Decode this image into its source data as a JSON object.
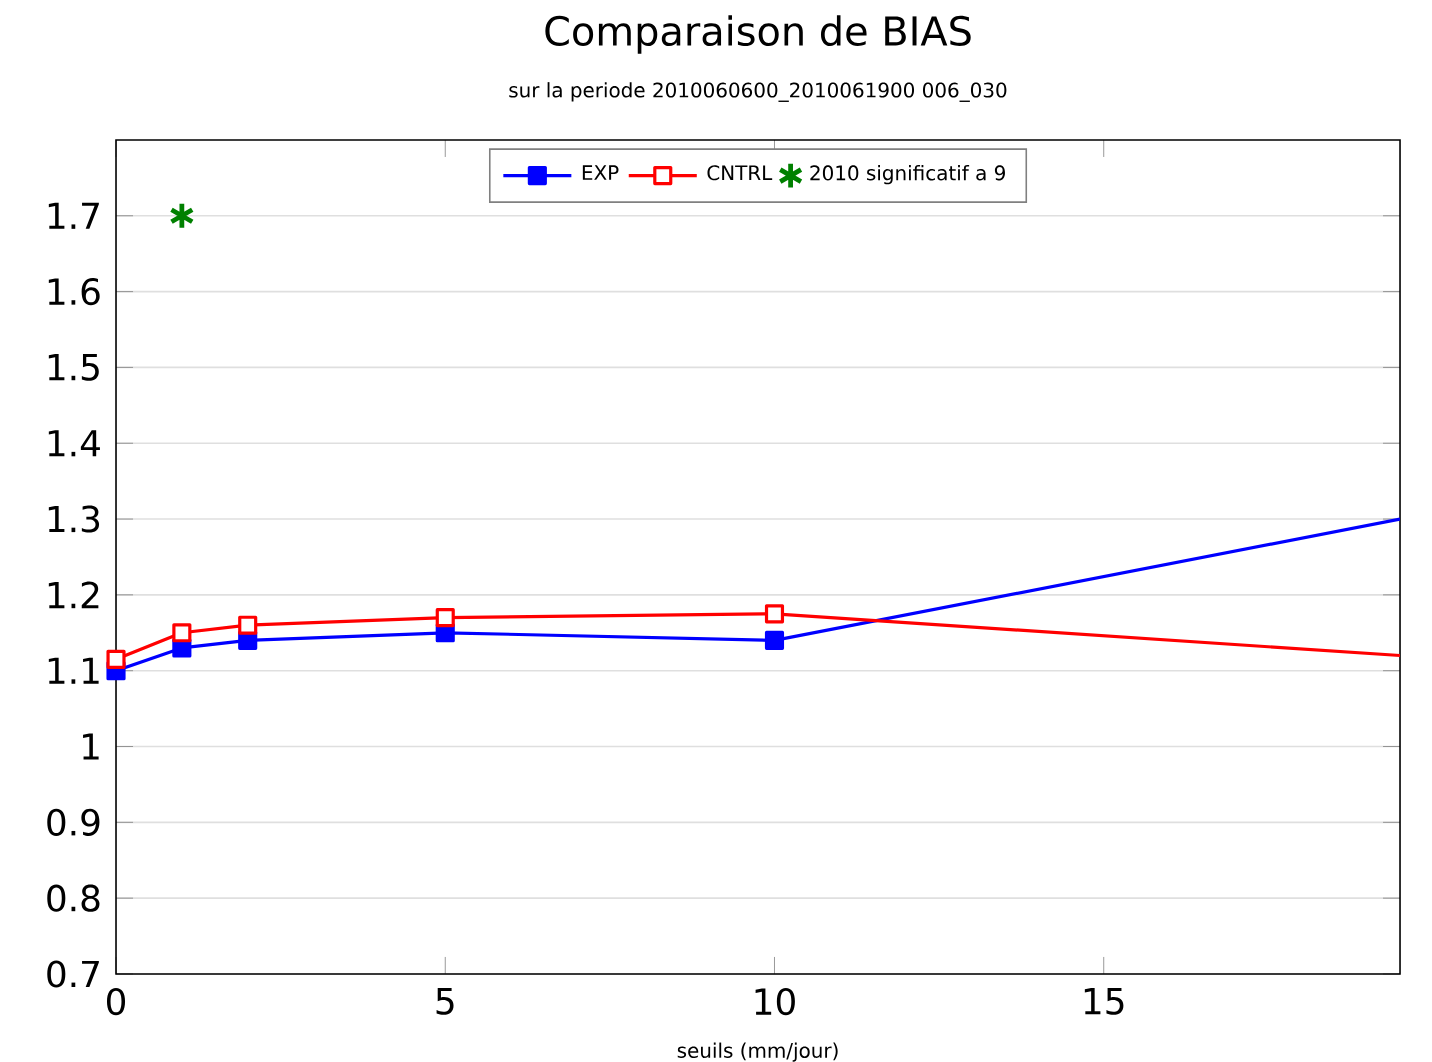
{
  "chart_data": {
    "type": "line",
    "title": "Comparaison de BIAS",
    "subtitle": "sur la periode 2010060600_2010061900 006_030",
    "xlabel": "seuils (mm/jour)",
    "xlim": [
      0,
      19.5
    ],
    "ylim": [
      0.7,
      1.8
    ],
    "xticks": [
      0,
      5,
      10,
      15
    ],
    "yticks": [
      0.7,
      0.8,
      0.9,
      1,
      1.1,
      1.2,
      1.3,
      1.4,
      1.5,
      1.6,
      1.7
    ],
    "grid": "y",
    "legend": "top",
    "marker": "square",
    "series": [
      {
        "name": "EXP",
        "color": "#0000ff",
        "x": [
          0,
          1,
          2,
          5,
          10,
          19.5
        ],
        "values": [
          1.1,
          1.13,
          1.14,
          1.15,
          1.14,
          1.3
        ]
      },
      {
        "name": "CNTRL",
        "color": "#ff0000",
        "x": [
          0,
          1,
          2,
          5,
          10,
          19.5
        ],
        "values": [
          1.115,
          1.15,
          1.16,
          1.17,
          1.175,
          1.12
        ]
      },
      {
        "name": "2010 significatif a 9",
        "type": "scatter",
        "marker": "cross",
        "color": "#008000",
        "x": [
          1
        ],
        "values": [
          1.7
        ]
      }
    ]
  }
}
